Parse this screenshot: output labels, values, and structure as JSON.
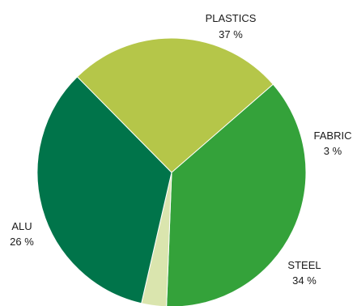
{
  "chart_data": {
    "type": "pie",
    "slices": [
      {
        "label": "PLASTICS",
        "value": 37,
        "value_label": "37 %",
        "color": "#34a23a"
      },
      {
        "label": "FABRIC",
        "value": 3,
        "value_label": "3 %",
        "color": "#dae5ae"
      },
      {
        "label": "STEEL",
        "value": 34,
        "value_label": "34 %",
        "color": "#00744a"
      },
      {
        "label": "ALU",
        "value": 26,
        "value_label": "26 %",
        "color": "#b5c649"
      }
    ]
  }
}
